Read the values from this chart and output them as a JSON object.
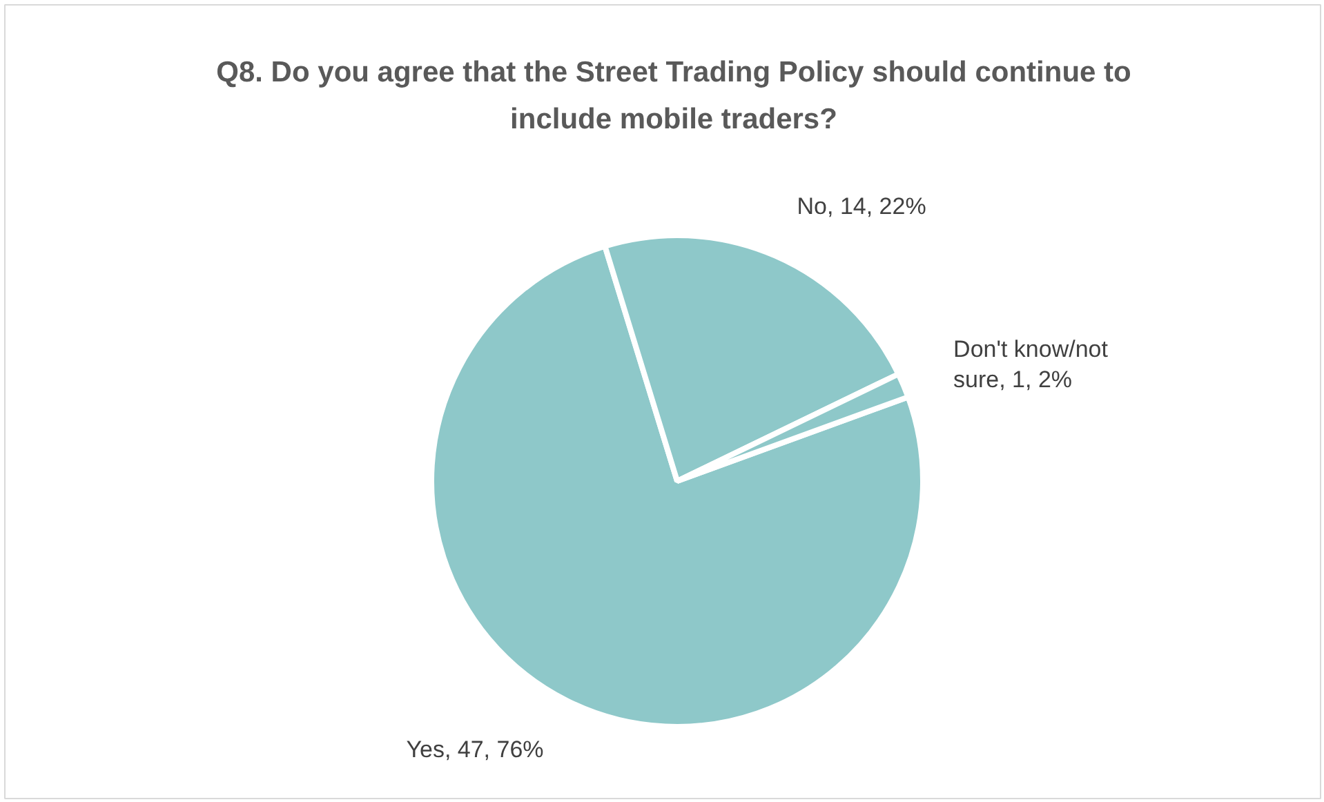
{
  "chart_data": {
    "type": "pie",
    "title": "Q8. Do you agree that the Street Trading Policy should continue to include mobile traders?",
    "categories": [
      "Yes",
      "No",
      "Don't know/not sure"
    ],
    "values": [
      47,
      14,
      1
    ],
    "colors": [
      "#8ec8c9",
      "#8ec8c9",
      "#8ec8c9"
    ],
    "value_labels": [
      "47, 76%",
      "14, 22%",
      "1, 2%"
    ],
    "legend": false
  }
}
